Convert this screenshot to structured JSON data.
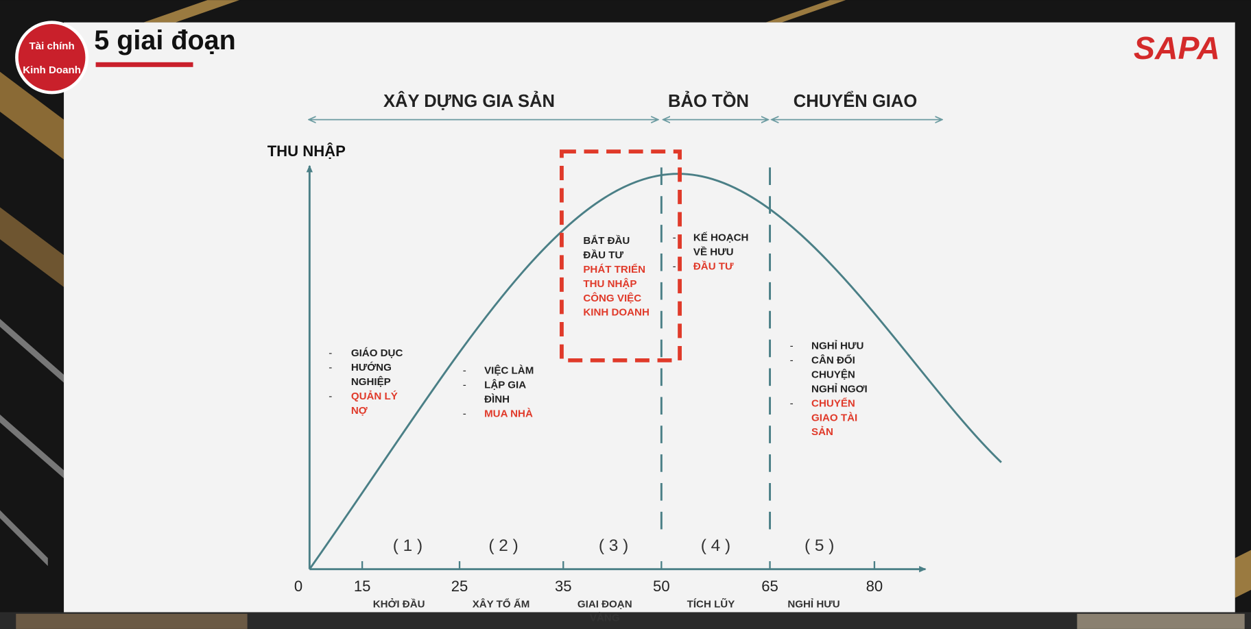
{
  "header": {
    "title": "5 giai đoạn",
    "logo_left": [
      "Tài chính",
      "Kinh Doanh"
    ],
    "logo_right": "SAPA"
  },
  "phases": [
    "XÂY DỰNG GIA SẢN",
    "BẢO TỒN",
    "CHUYỂN GIAO"
  ],
  "axis": {
    "y_label": "THU NHẬP",
    "ticks": [
      0,
      15,
      25,
      35,
      50,
      65,
      80
    ]
  },
  "stages": [
    {
      "number": "( 1 )",
      "name": [
        "KHỞI ĐẦU"
      ],
      "items": [
        {
          "lines": [
            "GIÁO DỤC"
          ],
          "highlight": false
        },
        {
          "lines": [
            "HƯỚNG",
            "NGHIỆP"
          ],
          "highlight": false
        },
        {
          "lines": [
            "QUẢN LÝ",
            "NỢ"
          ],
          "highlight": true
        }
      ]
    },
    {
      "number": "( 2 )",
      "name": [
        "XÂY TỔ ẤM"
      ],
      "items": [
        {
          "lines": [
            "VIỆC LÀM"
          ],
          "highlight": false
        },
        {
          "lines": [
            "LẬP GIA",
            "ĐÌNH"
          ],
          "highlight": false
        },
        {
          "lines": [
            "MUA NHÀ"
          ],
          "highlight": true
        }
      ]
    },
    {
      "number": "( 3 )",
      "name": [
        "GIAI ĐOẠN",
        "VÀNG"
      ],
      "items": [
        {
          "lines": [
            "BẮT ĐẦU",
            "ĐẦU TƯ"
          ],
          "highlight": false
        },
        {
          "lines": [
            "PHÁT TRIỂN",
            "THU NHẬP",
            "CÔNG VIỆC",
            "KINH  DOANH"
          ],
          "highlight": true
        }
      ]
    },
    {
      "number": "( 4 )",
      "name": [
        "TÍCH LŨY"
      ],
      "items": [
        {
          "lines": [
            "KẾ HOẠCH",
            "VỀ HƯU"
          ],
          "highlight": false
        },
        {
          "lines": [
            "ĐẦU TƯ"
          ],
          "highlight": true
        }
      ]
    },
    {
      "number": "( 5 )",
      "name": [
        "NGHỈ HƯU"
      ],
      "items": [
        {
          "lines": [
            "NGHỈ HƯU"
          ],
          "highlight": false
        },
        {
          "lines": [
            "CÂN ĐỐI",
            "CHUYỆN",
            "NGHỈ NGƠI"
          ],
          "highlight": false
        },
        {
          "lines": [
            "CHUYỂN",
            "GIAO   TÀI",
            "SẢN"
          ],
          "highlight": true
        }
      ]
    }
  ]
}
